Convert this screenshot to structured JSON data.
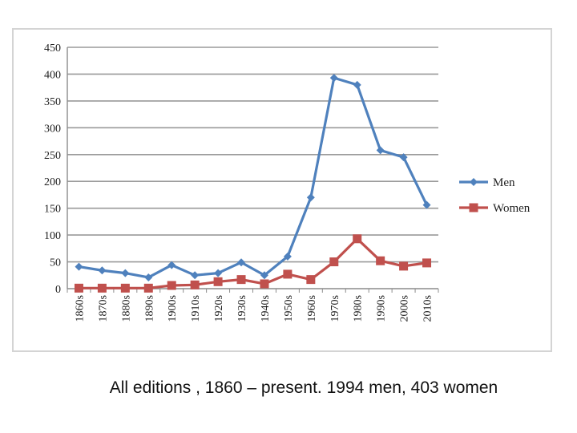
{
  "chart_data": {
    "type": "line",
    "categories": [
      "1860s",
      "1870s",
      "1880s",
      "1890s",
      "1900s",
      "1910s",
      "1920s",
      "1930s",
      "1940s",
      "1950s",
      "1960s",
      "1970s",
      "1980s",
      "1990s",
      "2000s",
      "2010s"
    ],
    "series": [
      {
        "name": "Men",
        "color": "#4f81bd",
        "marker": "diamond",
        "values": [
          41,
          34,
          29,
          21,
          44,
          25,
          29,
          49,
          25,
          60,
          170,
          393,
          380,
          258,
          245,
          156
        ]
      },
      {
        "name": "Women",
        "color": "#c0504d",
        "marker": "square",
        "values": [
          1,
          1,
          1,
          1,
          6,
          7,
          13,
          17,
          9,
          27,
          17,
          50,
          93,
          52,
          42,
          48
        ]
      }
    ],
    "ylim": [
      0,
      450
    ],
    "yticks": [
      0,
      50,
      100,
      150,
      200,
      250,
      300,
      350,
      400,
      450
    ],
    "grid": true,
    "legend_position": "right"
  },
  "caption": "All editions , 1860 – present. 1994 men, 403 women"
}
